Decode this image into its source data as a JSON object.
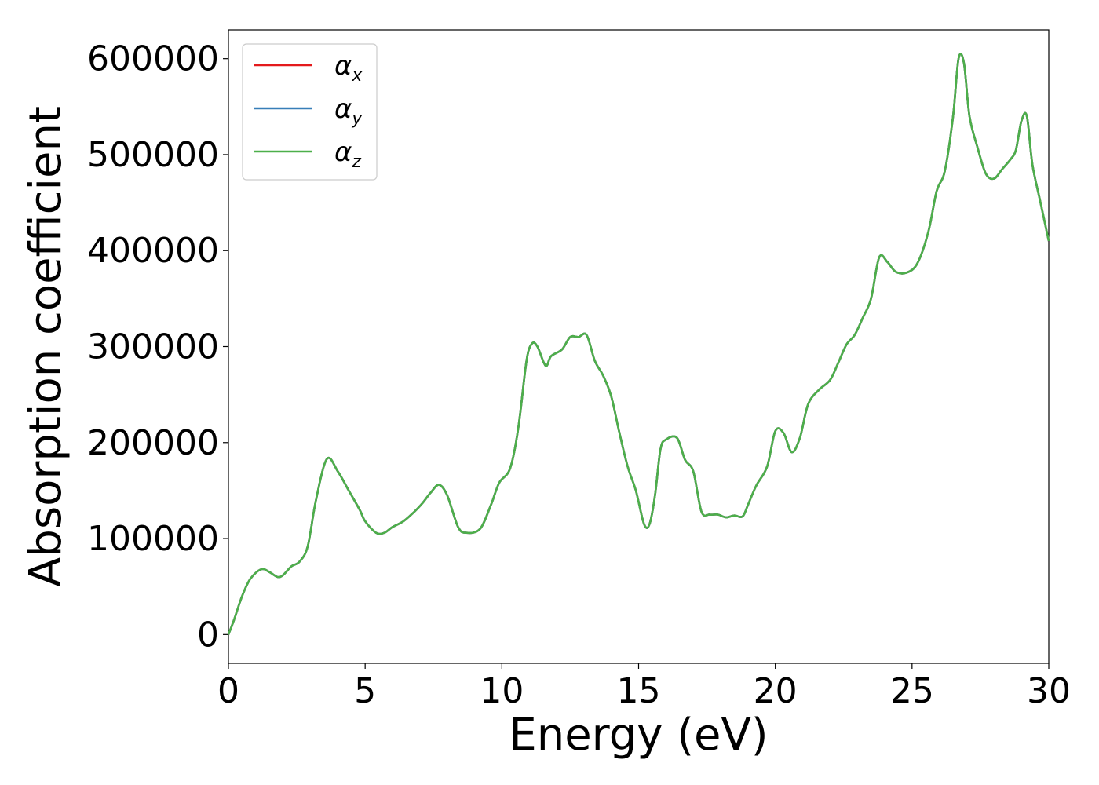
{
  "chart_data": {
    "type": "line",
    "xlabel": "Energy (eV)",
    "ylabel": "Absorption coefficient",
    "xlim": [
      0,
      30
    ],
    "ylim": [
      -30000,
      630000
    ],
    "xticks": [
      "0",
      "5",
      "10",
      "15",
      "20",
      "25",
      "30"
    ],
    "yticks": [
      "0",
      "100000",
      "200000",
      "300000",
      "400000",
      "500000",
      "600000"
    ],
    "grid": false,
    "legend_position": "top-left",
    "x": [
      0,
      0.2,
      0.5,
      0.8,
      1.2,
      1.5,
      1.8,
      2.0,
      2.3,
      2.6,
      2.9,
      3.2,
      3.6,
      4.0,
      4.4,
      4.8,
      5.0,
      5.4,
      5.7,
      6.0,
      6.4,
      6.8,
      7.1,
      7.4,
      7.7,
      8.0,
      8.4,
      8.7,
      9.2,
      9.6,
      9.9,
      10.3,
      10.6,
      10.9,
      11.1,
      11.3,
      11.6,
      11.8,
      12.2,
      12.5,
      12.8,
      13.1,
      13.4,
      13.7,
      14.0,
      14.3,
      14.6,
      14.9,
      15.2,
      15.4,
      15.6,
      15.8,
      16.0,
      16.4,
      16.7,
      17.0,
      17.3,
      17.6,
      17.9,
      18.2,
      18.5,
      18.8,
      19.0,
      19.3,
      19.7,
      20.0,
      20.3,
      20.6,
      20.9,
      21.2,
      21.6,
      22.0,
      22.3,
      22.6,
      22.9,
      23.2,
      23.5,
      23.8,
      24.1,
      24.4,
      24.8,
      25.2,
      25.6,
      25.9,
      26.2,
      26.5,
      26.7,
      26.9,
      27.1,
      27.4,
      27.7,
      28.0,
      28.3,
      28.6,
      28.8,
      29.0,
      29.2,
      29.4,
      29.7,
      30.0
    ],
    "series": [
      {
        "name": "α",
        "sub": "x",
        "color": "#e41a1c",
        "values": [
          0,
          15000,
          40000,
          58000,
          68000,
          65000,
          60000,
          62000,
          71000,
          76000,
          92000,
          140000,
          183000,
          170000,
          150000,
          130000,
          118000,
          106000,
          106000,
          112000,
          118000,
          128000,
          137000,
          148000,
          156000,
          145000,
          112000,
          106000,
          110000,
          135000,
          158000,
          173000,
          215000,
          285000,
          303000,
          300000,
          280000,
          290000,
          297000,
          310000,
          310000,
          312000,
          285000,
          270000,
          248000,
          210000,
          175000,
          150000,
          115000,
          115000,
          145000,
          193000,
          203000,
          205000,
          182000,
          170000,
          128000,
          125000,
          125000,
          122000,
          124000,
          123000,
          135000,
          155000,
          175000,
          212000,
          210000,
          190000,
          205000,
          240000,
          255000,
          265000,
          283000,
          302000,
          312000,
          330000,
          350000,
          393000,
          388000,
          378000,
          377000,
          387000,
          420000,
          462000,
          483000,
          540000,
          600000,
          595000,
          540000,
          507000,
          480000,
          475000,
          485000,
          495000,
          505000,
          535000,
          540000,
          490000,
          450000,
          410000
        ]
      },
      {
        "name": "α",
        "sub": "y",
        "color": "#377eb8",
        "values": [
          0,
          15000,
          40000,
          58000,
          68000,
          65000,
          60000,
          62000,
          71000,
          76000,
          92000,
          140000,
          183000,
          170000,
          150000,
          130000,
          118000,
          106000,
          106000,
          112000,
          118000,
          128000,
          137000,
          148000,
          156000,
          145000,
          112000,
          106000,
          110000,
          135000,
          158000,
          173000,
          215000,
          285000,
          303000,
          300000,
          280000,
          290000,
          297000,
          310000,
          310000,
          312000,
          285000,
          270000,
          248000,
          210000,
          175000,
          150000,
          115000,
          115000,
          145000,
          193000,
          203000,
          205000,
          182000,
          170000,
          128000,
          125000,
          125000,
          122000,
          124000,
          123000,
          135000,
          155000,
          175000,
          212000,
          210000,
          190000,
          205000,
          240000,
          255000,
          265000,
          283000,
          302000,
          312000,
          330000,
          350000,
          393000,
          388000,
          378000,
          377000,
          387000,
          420000,
          462000,
          483000,
          540000,
          600000,
          595000,
          540000,
          507000,
          480000,
          475000,
          485000,
          495000,
          505000,
          535000,
          540000,
          490000,
          450000,
          410000
        ]
      },
      {
        "name": "α",
        "sub": "z",
        "color": "#4daf4a",
        "values": [
          0,
          15000,
          40000,
          58000,
          68000,
          65000,
          60000,
          62000,
          71000,
          76000,
          92000,
          140000,
          183000,
          170000,
          150000,
          130000,
          118000,
          106000,
          106000,
          112000,
          118000,
          128000,
          137000,
          148000,
          156000,
          145000,
          112000,
          106000,
          110000,
          135000,
          158000,
          173000,
          215000,
          285000,
          303000,
          300000,
          280000,
          290000,
          297000,
          310000,
          310000,
          312000,
          285000,
          270000,
          248000,
          210000,
          175000,
          150000,
          115000,
          115000,
          145000,
          193000,
          203000,
          205000,
          182000,
          170000,
          128000,
          125000,
          125000,
          122000,
          124000,
          123000,
          135000,
          155000,
          175000,
          212000,
          210000,
          190000,
          205000,
          240000,
          255000,
          265000,
          283000,
          302000,
          312000,
          330000,
          350000,
          393000,
          388000,
          378000,
          377000,
          387000,
          420000,
          462000,
          483000,
          540000,
          600000,
          595000,
          540000,
          507000,
          480000,
          475000,
          485000,
          495000,
          505000,
          535000,
          540000,
          490000,
          450000,
          410000
        ]
      }
    ]
  }
}
